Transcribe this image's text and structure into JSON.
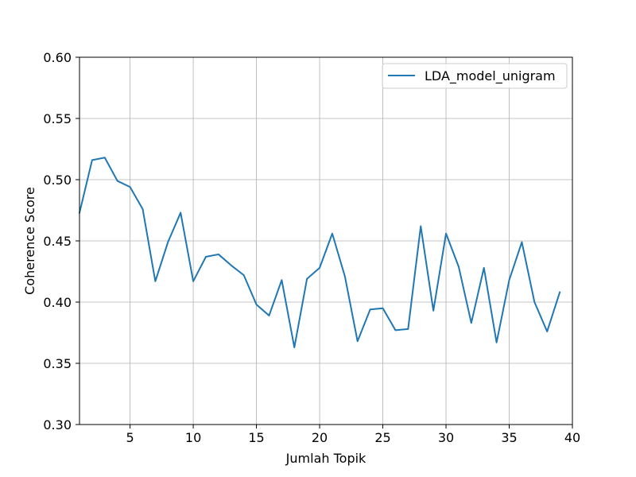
{
  "chart_data": {
    "type": "line",
    "title": "",
    "xlabel": "Jumlah Topik",
    "ylabel": "Coherence Score",
    "xlim": [
      1,
      40
    ],
    "ylim": [
      0.3,
      0.6
    ],
    "xticks": [
      5,
      10,
      15,
      20,
      25,
      30,
      35,
      40
    ],
    "yticks": [
      0.3,
      0.35,
      0.4,
      0.45,
      0.5,
      0.55,
      0.6
    ],
    "grid": true,
    "legend_position": "top-right",
    "series": [
      {
        "name": "LDA_model_unigram",
        "color": "#1f77b4",
        "x": [
          1,
          2,
          3,
          4,
          5,
          6,
          7,
          8,
          9,
          10,
          11,
          12,
          13,
          14,
          15,
          16,
          17,
          18,
          19,
          20,
          21,
          22,
          23,
          24,
          25,
          26,
          27,
          28,
          29,
          30,
          31,
          32,
          33,
          34,
          35,
          36,
          37,
          38,
          39
        ],
        "y": [
          0.473,
          0.516,
          0.518,
          0.499,
          0.494,
          0.476,
          0.417,
          0.449,
          0.473,
          0.417,
          0.437,
          0.439,
          0.43,
          0.422,
          0.398,
          0.389,
          0.418,
          0.363,
          0.419,
          0.428,
          0.456,
          0.421,
          0.368,
          0.394,
          0.395,
          0.377,
          0.378,
          0.462,
          0.393,
          0.456,
          0.429,
          0.383,
          0.428,
          0.367,
          0.418,
          0.449,
          0.4,
          0.376,
          0.408
        ]
      }
    ]
  }
}
